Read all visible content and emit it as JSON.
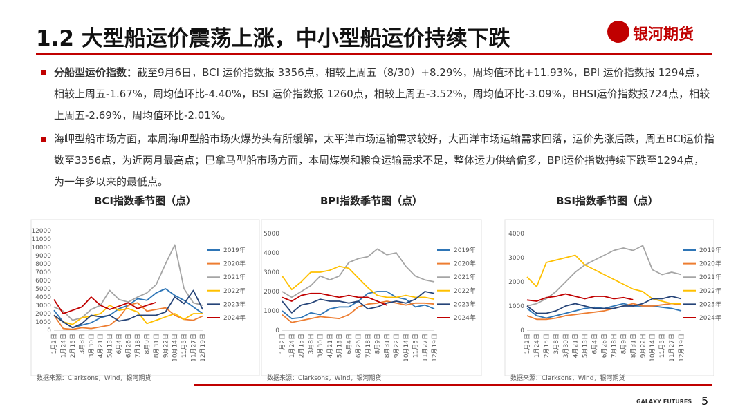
{
  "header": {
    "title": "1.2 大型船运价震荡上涨，中小型船运价持续下跌",
    "logo": "银河期货"
  },
  "bullets": [
    {
      "lead": "分船型运价指数：",
      "text": "截至9月6日，BCI 运价指数报 3356点，相较上周五（8/30）+8.29%，周均值环比+11.93%，BPI 运价指数报 1294点，相较上周五-1.67%，周均值环比-4.40%，BSI 运价指数报 1260点，相较上周五-3.52%，周均值环比-3.09%，BHSI运价指数报724点，相较上周五-2.69%，周均值环比-2.01%。"
    },
    {
      "text": "海岬型船市场方面，本周海岬型船市场火爆势头有所缓解，太平洋市场运输需求较好，大西洋市场运输需求回落，运价先涨后跌，周五BCI运价指数至3356点，为近两月最高点；巴拿马型船市场方面，本周煤炭和粮食运输需求不足，整体运力供给偏多，BPI运价指数持续下跌至1294点，为一年多以来的最低点。"
    }
  ],
  "chart_data": [
    {
      "type": "line",
      "title": "BCI指数季节图（点）",
      "source": "数据来源：Clarksons，Wind，银河期货",
      "categories": [
        "1月2日",
        "1月24日",
        "2月15日",
        "3月8日",
        "3月30日",
        "4月21日",
        "5月13日",
        "6月4日",
        "6月26日",
        "7月18日",
        "8月9日",
        "8月31日",
        "9月22日",
        "10月14日",
        "11月5日",
        "11月27日",
        "12月19日"
      ],
      "ylim": [
        0,
        12000
      ],
      "yticks": [
        0,
        1000,
        2000,
        3000,
        4000,
        5000,
        6000,
        7000,
        8000,
        9000,
        10000,
        11000,
        12000
      ],
      "series": [
        {
          "name": "2019年",
          "color": "#2e75b6",
          "values": [
            2400,
            1000,
            300,
            600,
            900,
            1500,
            1800,
            2600,
            3000,
            3800,
            3600,
            4500,
            5000,
            4200,
            3600,
            2800,
            2000
          ]
        },
        {
          "name": "2020年",
          "color": "#ed7d31",
          "values": [
            1800,
            200,
            100,
            300,
            200,
            400,
            600,
            1500,
            3000,
            3300,
            2300,
            2500,
            2700,
            1800,
            1300,
            1200,
            1700
          ]
        },
        {
          "name": "2021年",
          "color": "#a5a5a5",
          "values": [
            2800,
            2300,
            1200,
            1500,
            2500,
            3000,
            4800,
            3700,
            3400,
            4000,
            4500,
            5500,
            8000,
            10300,
            5000,
            3300,
            3000
          ]
        },
        {
          "name": "2022年",
          "color": "#ffc000",
          "values": [
            1800,
            1000,
            700,
            1500,
            1700,
            2000,
            3000,
            2400,
            2600,
            2200,
            800,
            1200,
            1600,
            2000,
            1300,
            2000,
            2000
          ]
        },
        {
          "name": "2023年",
          "color": "#264478",
          "values": [
            1800,
            1000,
            300,
            800,
            1800,
            1600,
            1800,
            1100,
            1300,
            1800,
            1800,
            1800,
            2200,
            4000,
            3200,
            4800,
            2500
          ]
        },
        {
          "name": "2024年",
          "color": "#c00000",
          "values": [
            3700,
            2000,
            2400,
            2800,
            4000,
            3000,
            2500,
            2900,
            3300,
            2600,
            3000,
            3356,
            null,
            null,
            null,
            null,
            null
          ]
        }
      ]
    },
    {
      "type": "line",
      "title": "BPI指数季节图（点）",
      "source": "数据来源：Clarksons，Wind，银河期货",
      "categories": [
        "1月2日",
        "1月24日",
        "2月15日",
        "3月8日",
        "3月30日",
        "4月21日",
        "5月13日",
        "6月4日",
        "6月26日",
        "7月18日",
        "8月9日",
        "8月31日",
        "9月22日",
        "10月14日",
        "11月5日",
        "11月27日",
        "12月19日"
      ],
      "ylim": [
        0,
        5000
      ],
      "yticks": [
        0,
        1000,
        2000,
        3000,
        4000,
        5000
      ],
      "series": [
        {
          "name": "2019年",
          "color": "#2e75b6",
          "values": [
            1000,
            600,
            650,
            900,
            800,
            1100,
            1200,
            1200,
            1500,
            1900,
            2000,
            2000,
            1700,
            1600,
            1200,
            1300,
            1100
          ]
        },
        {
          "name": "2020年",
          "color": "#ed7d31",
          "values": [
            800,
            400,
            500,
            600,
            700,
            650,
            600,
            800,
            1200,
            1350,
            1400,
            1500,
            1400,
            1300,
            1400,
            1400,
            1350
          ]
        },
        {
          "name": "2021年",
          "color": "#a5a5a5",
          "values": [
            2000,
            1700,
            2000,
            2300,
            2800,
            2600,
            2800,
            3500,
            3700,
            3800,
            4200,
            3900,
            4000,
            3300,
            2800,
            2600,
            2500
          ]
        },
        {
          "name": "2022年",
          "color": "#ffc000",
          "values": [
            2800,
            2100,
            2500,
            3000,
            3000,
            3100,
            3300,
            3200,
            2700,
            2200,
            1800,
            1700,
            1700,
            1800,
            1700,
            1700,
            1600
          ]
        },
        {
          "name": "2023年",
          "color": "#264478",
          "values": [
            1500,
            900,
            1300,
            1400,
            1600,
            1500,
            1500,
            1400,
            1500,
            1100,
            1200,
            1400,
            1500,
            1400,
            1600,
            2000,
            1900
          ]
        },
        {
          "name": "2024年",
          "color": "#c00000",
          "values": [
            1700,
            1500,
            1800,
            1900,
            1900,
            1800,
            1700,
            1800,
            1700,
            1700,
            1500,
            1294,
            null,
            null,
            null,
            null,
            null
          ]
        }
      ]
    },
    {
      "type": "line",
      "title": "BSI指数季节图（点）",
      "source": "数据来源：Clarksons，Wind，银河期货",
      "categories": [
        "1月2日",
        "1月24日",
        "2月15日",
        "3月8日",
        "3月30日",
        "4月21日",
        "5月13日",
        "6月4日",
        "6月26日",
        "7月18日",
        "8月9日",
        "8月31日",
        "9月22日",
        "10月14日",
        "11月5日",
        "11月27日",
        "12月19日"
      ],
      "ylim": [
        0,
        4000
      ],
      "yticks": [
        0,
        1000,
        2000,
        3000,
        4000
      ],
      "series": [
        {
          "name": "2019年",
          "color": "#2e75b6",
          "values": [
            900,
            600,
            500,
            600,
            700,
            800,
            900,
            950,
            900,
            1000,
            1100,
            1000,
            1000,
            1000,
            950,
            900,
            800
          ]
        },
        {
          "name": "2020年",
          "color": "#ed7d31",
          "values": [
            600,
            450,
            450,
            500,
            600,
            650,
            700,
            750,
            800,
            900,
            1000,
            1100,
            1000,
            1000,
            1050,
            1100,
            1050
          ]
        },
        {
          "name": "2021年",
          "color": "#a5a5a5",
          "values": [
            1000,
            1100,
            1300,
            1600,
            2000,
            2400,
            2700,
            2900,
            3100,
            3300,
            3400,
            3300,
            3500,
            2500,
            2300,
            2400,
            2300
          ]
        },
        {
          "name": "2022年",
          "color": "#ffc000",
          "values": [
            2200,
            1800,
            2800,
            2900,
            3000,
            3100,
            2700,
            2500,
            2300,
            2100,
            1900,
            1700,
            1600,
            1300,
            1200,
            1100,
            1100
          ]
        },
        {
          "name": "2023年",
          "color": "#264478",
          "values": [
            1000,
            700,
            700,
            800,
            1000,
            1100,
            1000,
            900,
            900,
            900,
            1000,
            1000,
            1100,
            1300,
            1300,
            1400,
            1300
          ]
        },
        {
          "name": "2024年",
          "color": "#c00000",
          "values": [
            1250,
            1200,
            1350,
            1400,
            1500,
            1400,
            1300,
            1400,
            1400,
            1300,
            1350,
            1260,
            null,
            null,
            null,
            null,
            null
          ]
        }
      ]
    }
  ],
  "footer": {
    "brand": "GALAXY FUTURES",
    "page": "5"
  }
}
